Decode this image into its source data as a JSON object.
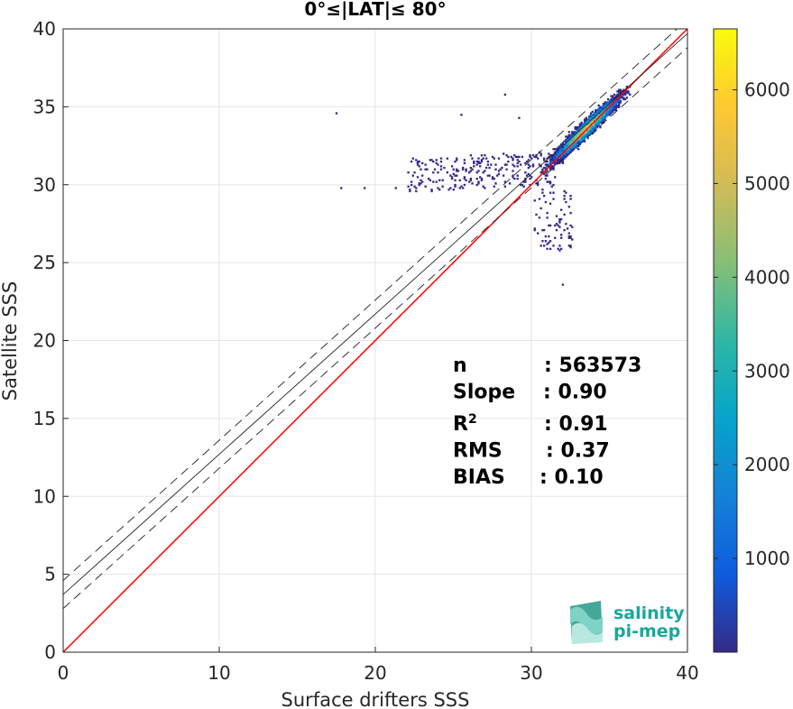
{
  "chart_data": {
    "type": "heatmap",
    "title": "0°≤|LAT|≤ 80°",
    "xlabel": "Surface drifters SSS",
    "ylabel": "Satellite SSS",
    "xlim": [
      0,
      40
    ],
    "ylim": [
      0,
      40
    ],
    "xticks": [
      "0",
      "10",
      "20",
      "30",
      "40"
    ],
    "yticks": [
      "0",
      "5",
      "10",
      "15",
      "20",
      "25",
      "30",
      "35",
      "40"
    ],
    "grid": true,
    "colorbar": {
      "range": [
        0,
        6650
      ],
      "ticks": [
        "1000",
        "2000",
        "3000",
        "4000",
        "5000",
        "6000"
      ],
      "colormap": "parula",
      "colors": [
        "#352a87",
        "#0f5cdd",
        "#1481d6",
        "#06a4ca",
        "#2eb7a4",
        "#87bf77",
        "#d1bb59",
        "#fec832",
        "#f9fb0e"
      ]
    },
    "lines": [
      {
        "kind": "identity",
        "color": "#ff0000",
        "slope": 1.0,
        "intercept": 0.0
      },
      {
        "kind": "fit",
        "color": "#222222",
        "slope": 0.9,
        "intercept": 3.7
      },
      {
        "kind": "fit-plus",
        "color": "#222222",
        "dash": true,
        "slope": 0.9,
        "intercept": 4.6
      },
      {
        "kind": "fit-minus",
        "color": "#222222",
        "dash": true,
        "slope": 0.9,
        "intercept": 2.8
      }
    ],
    "density_center": [
      33.5,
      33.5
    ],
    "stats": [
      {
        "label": "n",
        "value": ": 563573"
      },
      {
        "label": "Slope",
        "value": ": 0.90"
      },
      {
        "label": "R",
        "sup": "2",
        "value": ": 0.91"
      },
      {
        "label": "RMS",
        "value": ": 0.37"
      },
      {
        "label": "BIAS",
        "value": ": 0.10"
      }
    ]
  },
  "logo": {
    "line1": "salinity",
    "line2": "pi-mep",
    "color": "#1aa79a"
  }
}
